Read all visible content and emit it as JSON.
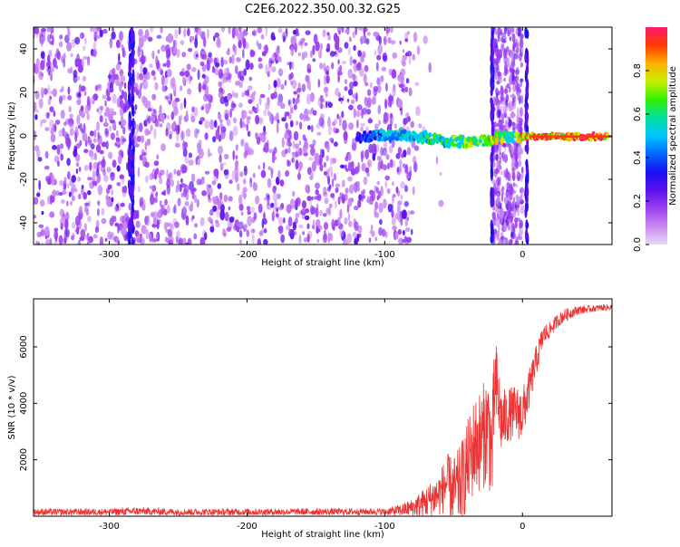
{
  "title": "C2E6.2022.350.00.32.G25",
  "colors": {
    "snr_line": "#ee3333",
    "background": "#ffffff",
    "frame": "#000000",
    "colormap": [
      "#e8d8f8",
      "#c98af0",
      "#9b3ef0",
      "#5a12ee",
      "#1a10f4",
      "#0068ff",
      "#00c6ff",
      "#00e0a0",
      "#30f000",
      "#c8f000",
      "#ffb000",
      "#ff3a00",
      "#ff1870"
    ]
  },
  "chart_data": [
    {
      "type": "heatmap",
      "xlabel": "Height of straight line (km)",
      "ylabel": "Frequency (Hz)",
      "xlim": [
        -355,
        65
      ],
      "ylim": [
        -50,
        50
      ],
      "xticks": [
        -300,
        -200,
        -100,
        0
      ],
      "yticks": [
        -40,
        -20,
        0,
        20,
        40
      ],
      "colorbar": {
        "label": "Normalized spectral amplitude",
        "range": [
          0.0,
          1.0
        ],
        "ticks": [
          0.0,
          0.2,
          0.4,
          0.6,
          0.8
        ]
      },
      "features": {
        "broadband_noise_x": [
          -355,
          -80
        ],
        "carrier_track": [
          {
            "x": -120,
            "y": 0.0,
            "v": 0.35
          },
          {
            "x": -100,
            "y": 0.2,
            "v": 0.5
          },
          {
            "x": -85,
            "y": 0.5,
            "v": 0.55
          },
          {
            "x": -70,
            "y": -1.0,
            "v": 0.6
          },
          {
            "x": -55,
            "y": -2.5,
            "v": 0.65
          },
          {
            "x": -40,
            "y": -3.0,
            "v": 0.7
          },
          {
            "x": -25,
            "y": -2.0,
            "v": 0.85
          },
          {
            "x": -20,
            "y": -1.0,
            "v": 0.9
          },
          {
            "x": -10,
            "y": -0.5,
            "v": 0.6
          },
          {
            "x": 5,
            "y": -0.3,
            "v": 0.95
          },
          {
            "x": 30,
            "y": -0.3,
            "v": 0.98
          },
          {
            "x": 62,
            "y": -0.3,
            "v": 0.98
          }
        ],
        "vertical_streaks_x": [
          -285,
          -283,
          -22,
          3
        ],
        "noise_band_x": [
          -22,
          0
        ]
      }
    },
    {
      "type": "line",
      "xlabel": "Height of straight line (km)",
      "ylabel": "SNR (10 * v/v)",
      "xlim": [
        -355,
        65
      ],
      "ylim": [
        0,
        7700
      ],
      "xticks": [
        -300,
        -200,
        -100,
        0
      ],
      "yticks": [
        2000,
        4000,
        6000
      ],
      "series": [
        {
          "x": [
            -355,
            -300,
            -280,
            -250,
            -200,
            -150,
            -120,
            -100,
            -90,
            -80,
            -70,
            -60,
            -55,
            -50,
            -45,
            -40,
            -35,
            -30,
            -25,
            -22,
            -20,
            -15,
            -10,
            -5,
            0,
            5,
            10,
            15,
            20,
            25,
            30,
            40,
            50,
            60,
            65
          ],
          "y": [
            150,
            150,
            180,
            150,
            150,
            160,
            160,
            160,
            200,
            300,
            500,
            800,
            1200,
            900,
            1100,
            1800,
            2500,
            2700,
            3200,
            2200,
            4800,
            3300,
            3600,
            3700,
            3600,
            4500,
            5500,
            6400,
            6600,
            6900,
            7100,
            7300,
            7350,
            7400,
            7400
          ],
          "noise": [
            150,
            150,
            180,
            150,
            150,
            150,
            150,
            150,
            250,
            400,
            700,
            1000,
            1300,
            1500,
            1800,
            2000,
            2200,
            2300,
            2500,
            2500,
            2200,
            1500,
            1200,
            1200,
            1200,
            900,
            700,
            500,
            350,
            300,
            300,
            200,
            150,
            150,
            150
          ]
        }
      ]
    }
  ]
}
